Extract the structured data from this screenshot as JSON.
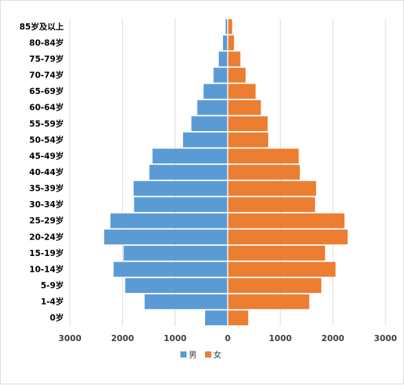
{
  "chart_data": {
    "type": "bar",
    "orientation": "horizontal",
    "layout": "population-pyramid",
    "categories": [
      "85岁及以上",
      "80-84岁",
      "75-79岁",
      "70-74岁",
      "65-69岁",
      "60-64岁",
      "55-59岁",
      "50-54岁",
      "45-49岁",
      "40-44岁",
      "35-39岁",
      "30-34岁",
      "25-29岁",
      "20-24岁",
      "15-19岁",
      "10-14岁",
      "5-9岁",
      "1-4岁",
      "0岁"
    ],
    "series": [
      {
        "name": "男",
        "color": "#5b9bd5",
        "side": "left",
        "values": [
          40,
          90,
          170,
          270,
          460,
          580,
          690,
          850,
          1430,
          1490,
          1790,
          1780,
          2230,
          2350,
          1980,
          2170,
          1950,
          1580,
          430
        ]
      },
      {
        "name": "女",
        "color": "#ed7d31",
        "side": "right",
        "values": [
          85,
          120,
          240,
          340,
          530,
          630,
          760,
          770,
          1350,
          1370,
          1680,
          1660,
          2220,
          2280,
          1850,
          2050,
          1780,
          1550,
          390
        ]
      }
    ],
    "xlim": [
      -3000,
      3000
    ],
    "x_ticks": [
      -3000,
      -2000,
      -1000,
      0,
      1000,
      2000,
      3000
    ],
    "x_tick_labels": [
      "3000",
      "2000",
      "1000",
      "0",
      "1000",
      "2000",
      "3000"
    ],
    "grid": "vertical",
    "legend": "bottom-center"
  },
  "colors": {
    "grid": "#d9d9d9",
    "axis": "#bfbfbf",
    "male": "#5b9bd5",
    "female": "#ed7d31"
  }
}
